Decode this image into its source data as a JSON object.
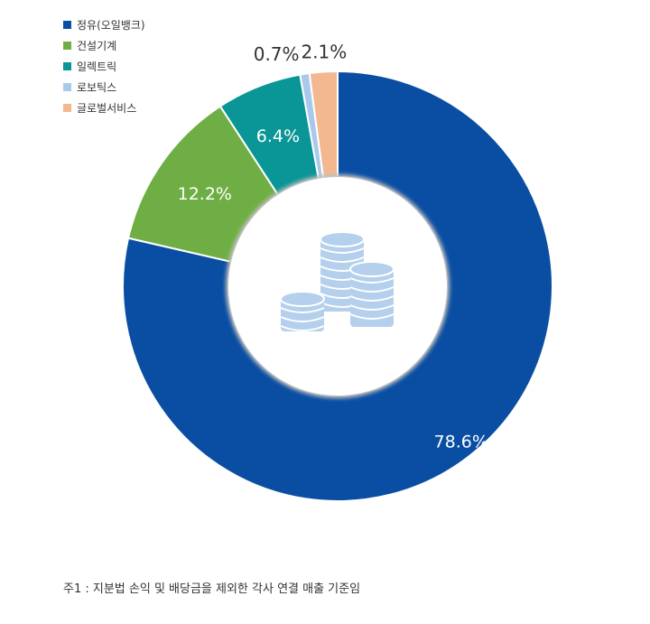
{
  "chart_data": {
    "type": "pie",
    "donut": true,
    "categories": [
      "정유(오일뱅크)",
      "건설기계",
      "일렉트릭",
      "로보틱스",
      "글로벌서비스"
    ],
    "values": [
      78.6,
      12.2,
      6.4,
      0.7,
      2.1
    ],
    "value_labels": [
      "78.6%",
      "12.2%",
      "6.4%",
      "0.7%",
      "2.1%"
    ],
    "colors": [
      "#0a4ea3",
      "#6fae44",
      "#0a9596",
      "#a9c9ec",
      "#f3b890"
    ],
    "legend_position": "top-left",
    "center_icon": "coins-icon"
  },
  "footnote": "주1 : 지분법 손익 및 배당금을 제외한 각사 연결 매출 기준임"
}
